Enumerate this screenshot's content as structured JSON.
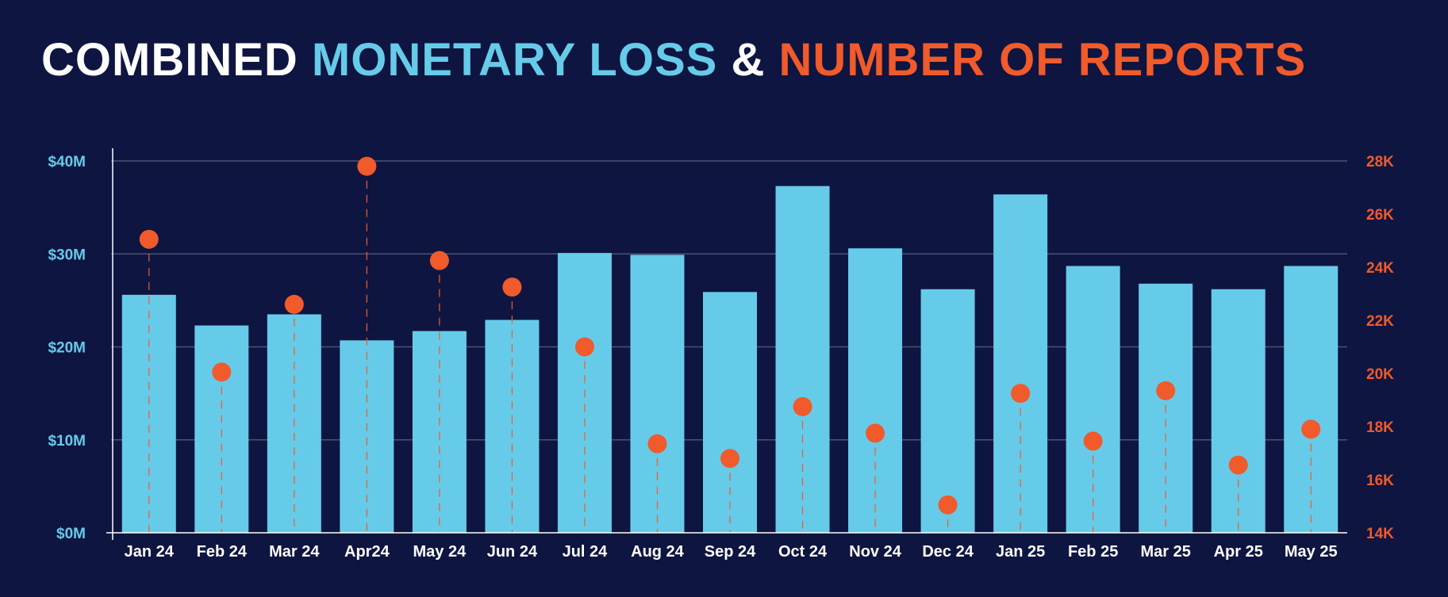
{
  "title": {
    "part1": "COMBINED",
    "part2": "MONETARY LOSS",
    "part3": "&",
    "part4": "NUMBER OF REPORTS"
  },
  "colors": {
    "background": "#0e1541",
    "bar": "#66cbe9",
    "point": "#f15a2b",
    "grid": "#4b5277",
    "text": "#ffffff"
  },
  "chart_data": {
    "type": "bar",
    "title": "COMBINED MONETARY LOSS & NUMBER OF REPORTS",
    "categories": [
      "Jan 24",
      "Feb 24",
      "Mar 24",
      "Apr24",
      "May 24",
      "Jun 24",
      "Jul 24",
      "Aug 24",
      "Sep 24",
      "Oct 24",
      "Nov 24",
      "Dec 24",
      "Jan 25",
      "Feb 25",
      "Mar 25",
      "Apr 25",
      "May 25"
    ],
    "series": [
      {
        "name": "MONETARY LOSS",
        "type": "bar",
        "axis": "left",
        "values": [
          25.6,
          22.3,
          23.5,
          20.7,
          21.7,
          22.9,
          30.1,
          29.9,
          25.9,
          37.3,
          30.6,
          26.2,
          36.4,
          28.7,
          26.8,
          26.2,
          28.7
        ]
      },
      {
        "name": "NUMBER OF REPORTS",
        "type": "scatter",
        "axis": "right",
        "values": [
          25050,
          20050,
          22600,
          27800,
          24250,
          23250,
          21000,
          17350,
          16800,
          18750,
          17750,
          15050,
          19250,
          17450,
          19350,
          16550,
          17900
        ]
      }
    ],
    "y_left": {
      "ticks": [
        "$0M",
        "$10M",
        "$20M",
        "$30M",
        "$40M"
      ],
      "values": [
        0,
        10,
        20,
        30,
        40
      ],
      "ylim": [
        0,
        40
      ]
    },
    "y_right": {
      "ticks": [
        "14K",
        "16K",
        "18K",
        "20K",
        "22K",
        "24K",
        "26K",
        "28K"
      ],
      "values": [
        14000,
        16000,
        18000,
        20000,
        22000,
        24000,
        26000,
        28000
      ],
      "ylim": [
        14000,
        28000
      ]
    },
    "grid": true,
    "legend": "none"
  }
}
